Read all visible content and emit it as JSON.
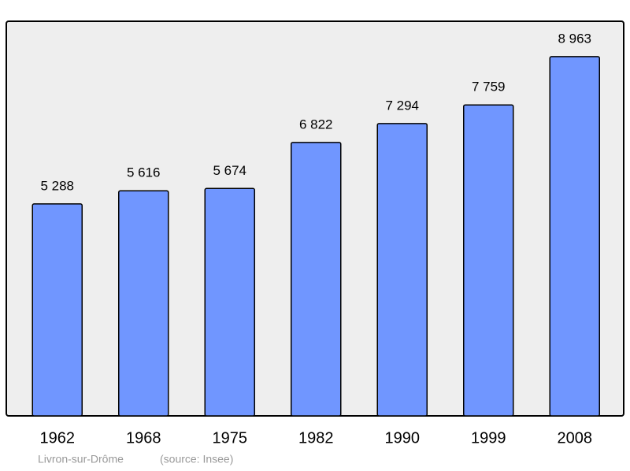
{
  "chart_data": {
    "type": "bar",
    "categories": [
      "1962",
      "1968",
      "1975",
      "1982",
      "1990",
      "1999",
      "2008"
    ],
    "values": [
      5288,
      5616,
      5674,
      6822,
      7294,
      7759,
      8963
    ],
    "value_labels": [
      "5 288",
      "5 616",
      "5 674",
      "6 822",
      "7 294",
      "7 759",
      "8 963"
    ],
    "color": "#7096ff",
    "ylim": [
      0,
      9846
    ],
    "place": "Livron-sur-Drôme",
    "source": "(source: Insee)"
  }
}
